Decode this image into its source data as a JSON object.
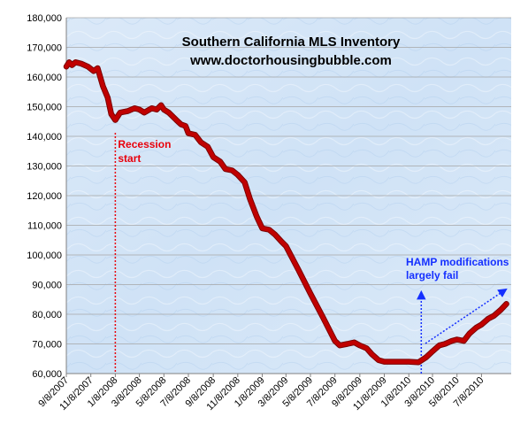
{
  "chart_data": {
    "type": "line",
    "title": "Southern California  MLS Inventory",
    "subtitle": "www.doctorhousingbubble.com",
    "xlabel": "",
    "ylabel": "",
    "x_tick_labels": [
      "9/8/2007",
      "11/8/2007",
      "1/8/2008",
      "3/8/2008",
      "5/8/2008",
      "7/8/2008",
      "9/8/2008",
      "11/8/2008",
      "1/8/2009",
      "3/8/2009",
      "5/8/2009",
      "7/8/2009",
      "9/8/2009",
      "11/8/2009",
      "1/8/2010",
      "3/8/2010",
      "5/8/2010",
      "7/8/2010"
    ],
    "y_tick_labels": [
      "60,000",
      "70,000",
      "80,000",
      "90,000",
      "100,000",
      "110,000",
      "120,000",
      "130,000",
      "140,000",
      "150,000",
      "160,000",
      "170,000",
      "180,000"
    ],
    "ylim": [
      60000,
      180000
    ],
    "grid": "horizontal",
    "legend": "none",
    "series": [
      {
        "color": "#c00000",
        "points": [
          [
            "2007-09-08",
            163500
          ],
          [
            "2007-09-15",
            165000
          ],
          [
            "2007-09-22",
            164000
          ],
          [
            "2007-10-01",
            165000
          ],
          [
            "2007-10-15",
            164500
          ],
          [
            "2007-11-01",
            163500
          ],
          [
            "2007-11-15",
            162000
          ],
          [
            "2007-11-25",
            163000
          ],
          [
            "2007-12-08",
            157000
          ],
          [
            "2007-12-20",
            153000
          ],
          [
            "2007-12-29",
            147500
          ],
          [
            "2008-01-08",
            145500
          ],
          [
            "2008-01-20",
            148000
          ],
          [
            "2008-02-08",
            148500
          ],
          [
            "2008-02-25",
            149500
          ],
          [
            "2008-03-08",
            149000
          ],
          [
            "2008-03-20",
            148000
          ],
          [
            "2008-04-08",
            149500
          ],
          [
            "2008-04-20",
            149000
          ],
          [
            "2008-05-01",
            150500
          ],
          [
            "2008-05-08",
            149000
          ],
          [
            "2008-05-20",
            148000
          ],
          [
            "2008-06-08",
            145500
          ],
          [
            "2008-06-20",
            144000
          ],
          [
            "2008-07-01",
            143500
          ],
          [
            "2008-07-08",
            141000
          ],
          [
            "2008-07-25",
            140500
          ],
          [
            "2008-08-08",
            138000
          ],
          [
            "2008-08-25",
            136500
          ],
          [
            "2008-09-08",
            133000
          ],
          [
            "2008-09-25",
            131500
          ],
          [
            "2008-10-08",
            129000
          ],
          [
            "2008-10-25",
            128500
          ],
          [
            "2008-11-08",
            127000
          ],
          [
            "2008-11-25",
            124500
          ],
          [
            "2008-12-08",
            119000
          ],
          [
            "2008-12-25",
            113000
          ],
          [
            "2009-01-08",
            109000
          ],
          [
            "2009-01-25",
            108500
          ],
          [
            "2009-02-08",
            107000
          ],
          [
            "2009-02-25",
            104500
          ],
          [
            "2009-03-08",
            103000
          ],
          [
            "2009-04-08",
            95000
          ],
          [
            "2009-05-08",
            87000
          ],
          [
            "2009-06-08",
            79000
          ],
          [
            "2009-07-08",
            71000
          ],
          [
            "2009-07-20",
            69500
          ],
          [
            "2009-08-08",
            70000
          ],
          [
            "2009-08-25",
            70500
          ],
          [
            "2009-09-08",
            69500
          ],
          [
            "2009-09-25",
            68500
          ],
          [
            "2009-10-08",
            66500
          ],
          [
            "2009-10-25",
            64500
          ],
          [
            "2009-11-08",
            64000
          ],
          [
            "2009-12-08",
            64000
          ],
          [
            "2010-01-08",
            64000
          ],
          [
            "2010-02-01",
            63800
          ],
          [
            "2010-02-20",
            65500
          ],
          [
            "2010-03-08",
            67500
          ],
          [
            "2010-03-25",
            69500
          ],
          [
            "2010-04-08",
            70000
          ],
          [
            "2010-04-25",
            71000
          ],
          [
            "2010-05-08",
            71500
          ],
          [
            "2010-05-25",
            71000
          ],
          [
            "2010-06-08",
            73500
          ],
          [
            "2010-06-25",
            75500
          ],
          [
            "2010-07-08",
            76500
          ],
          [
            "2010-07-25",
            78500
          ],
          [
            "2010-08-08",
            79500
          ],
          [
            "2010-08-25",
            81500
          ],
          [
            "2010-09-08",
            83500
          ]
        ]
      }
    ],
    "annotations": [
      {
        "text_lines": [
          "Recession",
          "start"
        ],
        "color": "#e8000b",
        "x": "2008-01-08",
        "style": "vertical-dotted-line"
      },
      {
        "text_lines": [
          "HAMP modifications",
          "largely fail"
        ],
        "color": "#1530ff",
        "x": "2010-02-08",
        "style": "arrows"
      }
    ]
  }
}
